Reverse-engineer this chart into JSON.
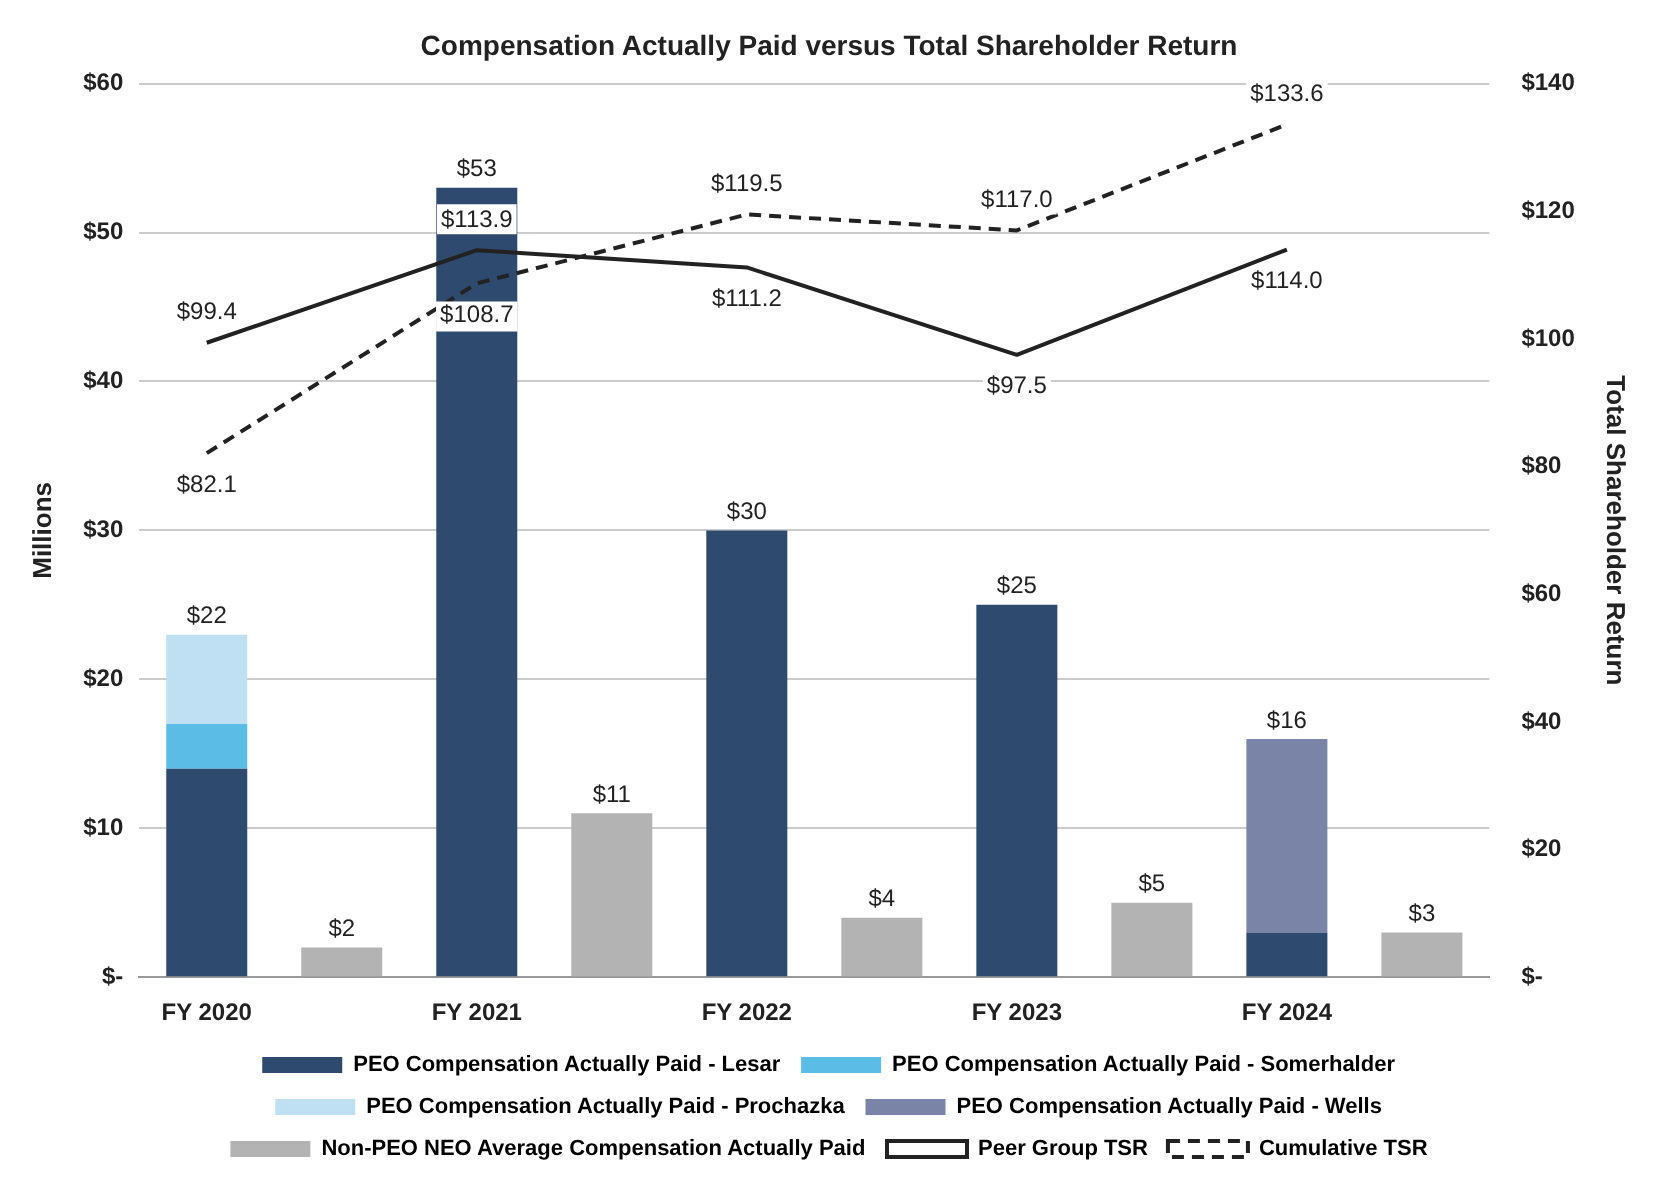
{
  "chart_data": {
    "type": "bar",
    "title": "Compensation Actually Paid versus Total Shareholder Return",
    "ylabel": "Millions",
    "y2label": "Total Shareholder Return",
    "categories": [
      "FY 2020",
      null,
      "FY 2021",
      null,
      "FY 2022",
      null,
      "FY 2023",
      null,
      "FY 2024",
      null
    ],
    "stacked": true,
    "series": [
      {
        "name": "PEO Compensation Actually Paid - Lesar",
        "color": "#2e4a6e",
        "values": [
          14,
          null,
          53,
          null,
          30,
          null,
          25,
          null,
          3,
          null
        ]
      },
      {
        "name": "PEO Compensation Actually Paid - Somerhalder",
        "color": "#5bbde6",
        "values": [
          3,
          null,
          null,
          null,
          null,
          null,
          null,
          null,
          null,
          null
        ]
      },
      {
        "name": "PEO Compensation Actually Paid - Prochazka",
        "color": "#bfe0f2",
        "values": [
          6,
          null,
          null,
          null,
          null,
          null,
          null,
          null,
          null,
          null
        ]
      },
      {
        "name": "PEO Compensation Actually Paid - Wells",
        "color": "#7a84a6",
        "values": [
          null,
          null,
          null,
          null,
          null,
          null,
          null,
          null,
          13,
          null
        ]
      },
      {
        "name": "Non-PEO NEO Average Compensation Actually Paid",
        "color": "#b3b3b3",
        "values": [
          null,
          2,
          null,
          11,
          null,
          4,
          null,
          5,
          null,
          3
        ],
        "value_labels": [
          null,
          "$2",
          null,
          "$11",
          null,
          "$4",
          null,
          "$5",
          null,
          "$3"
        ]
      },
      {
        "name": "Peer Group TSR",
        "type": "line",
        "axis": "y2",
        "color": "#222222",
        "line_style": "solid",
        "values": [
          99.4,
          null,
          113.9,
          null,
          111.2,
          null,
          97.5,
          null,
          114.0,
          null
        ],
        "value_labels": [
          "$99.4",
          null,
          "$113.9",
          null,
          "$111.2",
          null,
          "$97.5",
          null,
          "$114.0",
          null
        ]
      },
      {
        "name": "Cumulative TSR",
        "type": "line",
        "axis": "y2",
        "color": "#222222",
        "line_style": "dashed",
        "values": [
          82.1,
          null,
          108.7,
          null,
          119.5,
          null,
          117.0,
          null,
          133.6,
          null
        ],
        "value_labels": [
          "$82.1",
          null,
          "$108.7",
          null,
          "$119.5",
          null,
          "$117.0",
          null,
          "$133.6",
          null
        ]
      }
    ],
    "totals": [
      "$22",
      null,
      "$53",
      null,
      "$30",
      null,
      "$25",
      null,
      "$16",
      null
    ],
    "ylim": [
      0,
      60
    ],
    "yticks": [
      {
        "value": 0,
        "label": "$-"
      },
      {
        "value": 10,
        "label": "$10"
      },
      {
        "value": 20,
        "label": "$20"
      },
      {
        "value": 30,
        "label": "$30"
      },
      {
        "value": 40,
        "label": "$40"
      },
      {
        "value": 50,
        "label": "$50"
      },
      {
        "value": 60,
        "label": "$60"
      }
    ],
    "y2lim": [
      0,
      140
    ],
    "y2ticks": [
      {
        "value": 0,
        "label": "$-"
      },
      {
        "value": 20,
        "label": "$20"
      },
      {
        "value": 40,
        "label": "$40"
      },
      {
        "value": 60,
        "label": "$60"
      },
      {
        "value": 80,
        "label": "$80"
      },
      {
        "value": 100,
        "label": "$100"
      },
      {
        "value": 120,
        "label": "$120"
      },
      {
        "value": 140,
        "label": "$140"
      }
    ],
    "grid": "y",
    "legend": "bottom",
    "marker": "none"
  }
}
